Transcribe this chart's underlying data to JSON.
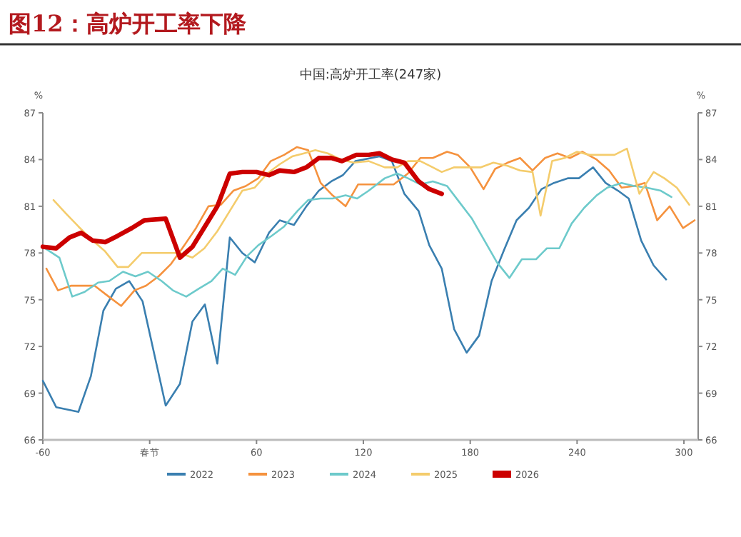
{
  "chart_data": {
    "type": "line",
    "title": "图12：高炉开工率下降",
    "subtitle": "中国:高炉开工率(247家)",
    "ylabel": "%",
    "y2label": "%",
    "xlim": [
      -60,
      308
    ],
    "xticks": [
      -60,
      {
        "value": 0,
        "label": "春节"
      },
      60,
      120,
      180,
      240,
      300
    ],
    "ylim": [
      66,
      87
    ],
    "yticks": [
      66,
      69,
      72,
      75,
      78,
      81,
      84,
      87
    ],
    "y2lim": [
      66,
      87
    ],
    "y2ticks": [
      66,
      69,
      72,
      75,
      78,
      81,
      84,
      87
    ],
    "grid": false,
    "legend": "bottom",
    "series": [
      {
        "name": "2022",
        "color": "#3a7fb0",
        "x": [
          -60,
          -52.5,
          -40,
          -33,
          -26,
          -19,
          -11.5,
          -4,
          9,
          17,
          24,
          31,
          38,
          45,
          52,
          59,
          67,
          73,
          81,
          88,
          95,
          102,
          108.5,
          115.5,
          129,
          136,
          143,
          151,
          157,
          164,
          171,
          178,
          185,
          192,
          199,
          206,
          213,
          220,
          227,
          235,
          241,
          249,
          256,
          263,
          269,
          276,
          283,
          290
        ],
        "values": [
          69.8,
          68.1,
          67.8,
          70.1,
          74.3,
          75.7,
          76.2,
          74.9,
          68.2,
          69.6,
          73.6,
          74.7,
          70.9,
          79.0,
          78.0,
          77.4,
          79.3,
          80.1,
          79.8,
          81.0,
          82.0,
          82.6,
          83.0,
          83.9,
          84.2,
          83.9,
          81.8,
          80.7,
          78.5,
          77.0,
          73.1,
          71.6,
          72.7,
          76.2,
          78.2,
          80.1,
          80.9,
          82.1,
          82.5,
          82.8,
          82.8,
          83.5,
          82.5,
          82.0,
          81.5,
          78.8,
          77.2,
          76.3
        ]
      },
      {
        "name": "2023",
        "color": "#f5923e",
        "x": [
          -58,
          -51.5,
          -44,
          -37,
          -31,
          -23,
          -16,
          -8.5,
          -2,
          5,
          12,
          19.5,
          26,
          33,
          40,
          47,
          54,
          61,
          68,
          75.5,
          82.7,
          89,
          96,
          102.7,
          110,
          117,
          137,
          145,
          152,
          159,
          167,
          173,
          180,
          187.5,
          194,
          201,
          208,
          215,
          222,
          229,
          236,
          243,
          251,
          258,
          265,
          272,
          278,
          285,
          292,
          299.5,
          306
        ],
        "values": [
          77.0,
          75.6,
          75.9,
          75.9,
          75.9,
          75.2,
          74.6,
          75.6,
          75.9,
          76.5,
          77.3,
          78.5,
          79.6,
          81.0,
          81.1,
          82.0,
          82.3,
          82.8,
          83.9,
          84.3,
          84.8,
          84.6,
          82.5,
          81.7,
          81.0,
          82.4,
          82.4,
          83.1,
          84.1,
          84.1,
          84.5,
          84.3,
          83.5,
          82.1,
          83.4,
          83.8,
          84.1,
          83.3,
          84.1,
          84.4,
          84.1,
          84.5,
          84.0,
          83.3,
          82.2,
          82.3,
          82.5,
          80.1,
          81.0,
          79.6,
          80.1
        ]
      },
      {
        "name": "2024",
        "color": "#6dcacb",
        "x": [
          -60,
          -50.7,
          -43.5,
          -36.5,
          -29,
          -22.7,
          -15,
          -8,
          -1,
          6.7,
          13,
          20.5,
          27.5,
          34.7,
          41,
          48,
          54.7,
          61,
          68.5,
          75.5,
          83,
          89,
          96,
          102.7,
          110,
          116.5,
          123,
          132,
          139,
          145,
          152,
          159,
          167,
          173,
          181,
          188,
          195,
          202,
          209,
          217,
          223,
          230,
          237,
          244,
          251,
          257,
          265,
          272,
          279,
          287,
          293
        ],
        "values": [
          78.4,
          77.7,
          75.2,
          75.5,
          76.1,
          76.2,
          76.8,
          76.5,
          76.8,
          76.2,
          75.6,
          75.2,
          75.7,
          76.2,
          77.0,
          76.6,
          77.8,
          78.5,
          79.1,
          79.7,
          80.7,
          81.4,
          81.5,
          81.5,
          81.7,
          81.5,
          82.0,
          82.8,
          83.1,
          82.8,
          82.4,
          82.6,
          82.3,
          81.4,
          80.2,
          78.8,
          77.4,
          76.4,
          77.6,
          77.6,
          78.3,
          78.3,
          79.9,
          80.9,
          81.7,
          82.2,
          82.5,
          82.3,
          82.2,
          82.0,
          81.6
        ]
      },
      {
        "name": "2025",
        "color": "#f4cc6c",
        "x": [
          -54,
          -46.7,
          -40,
          -32,
          -25,
          -18,
          -12,
          -4.5,
          2.7,
          10.7,
          17,
          24,
          30.7,
          38,
          45,
          52,
          59,
          66,
          73,
          80,
          86.7,
          93,
          100,
          107.5,
          114.7,
          123,
          132,
          139,
          145,
          152,
          159,
          164,
          171,
          179,
          186,
          193,
          201,
          208,
          215,
          219.5,
          226,
          233,
          240,
          247,
          255,
          261,
          268,
          275,
          283,
          289,
          296,
          303
        ],
        "values": [
          81.4,
          80.5,
          79.7,
          78.8,
          78.1,
          77.1,
          77.1,
          78.0,
          78.0,
          78.0,
          78.0,
          77.7,
          78.3,
          79.4,
          80.7,
          82.0,
          82.2,
          83.1,
          83.7,
          84.2,
          84.4,
          84.6,
          84.4,
          84.0,
          83.8,
          83.9,
          83.5,
          83.5,
          83.9,
          83.9,
          83.5,
          83.2,
          83.5,
          83.5,
          83.5,
          83.8,
          83.6,
          83.3,
          83.2,
          80.4,
          83.9,
          84.1,
          84.5,
          84.3,
          84.3,
          84.3,
          84.7,
          81.8,
          83.2,
          82.8,
          82.2,
          81.1
        ]
      },
      {
        "name": "2026",
        "color": "#cc0000",
        "x": [
          -60,
          -52.5,
          -45,
          -38.5,
          -32,
          -25,
          -18,
          -10,
          -3,
          9,
          17,
          24,
          31,
          38,
          45,
          52,
          60,
          67,
          73,
          81,
          88,
          95,
          102,
          108,
          116,
          123,
          129,
          136,
          143,
          151,
          157,
          164
        ],
        "values": [
          78.4,
          78.3,
          79.0,
          79.3,
          78.8,
          78.7,
          79.1,
          79.6,
          80.1,
          80.2,
          77.7,
          78.4,
          79.7,
          81.0,
          83.1,
          83.2,
          83.2,
          83.0,
          83.3,
          83.2,
          83.5,
          84.1,
          84.1,
          83.9,
          84.3,
          84.3,
          84.4,
          84.0,
          83.8,
          82.6,
          82.1,
          81.8
        ]
      }
    ]
  }
}
